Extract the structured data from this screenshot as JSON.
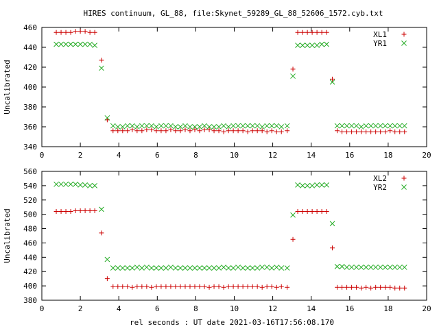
{
  "chart_data": {
    "title": "HIRES continuum, GL_88, file:Skynet_59289_GL_88_52606_1572.cyb.txt",
    "xlabel": "rel seconds : UT date 2021-03-16T17:56:08.170",
    "colors": {
      "series1": "#cc0000",
      "series2": "#22aa22"
    },
    "panels": [
      {
        "type": "scatter",
        "ylabel": "Uncalibrated",
        "xlim": [
          0,
          20
        ],
        "ylim": [
          340,
          460
        ],
        "xticks": [
          0,
          2,
          4,
          6,
          8,
          10,
          12,
          14,
          16,
          18,
          20
        ],
        "yticks": [
          340,
          360,
          380,
          400,
          420,
          440,
          460
        ],
        "legend_position": "top-right",
        "x": [
          0.75,
          1.0,
          1.25,
          1.5,
          1.75,
          2.0,
          2.25,
          2.5,
          2.75,
          3.1,
          3.4,
          3.7,
          3.95,
          4.2,
          4.45,
          4.7,
          4.95,
          5.2,
          5.45,
          5.7,
          5.95,
          6.2,
          6.45,
          6.7,
          6.95,
          7.2,
          7.45,
          7.7,
          7.95,
          8.2,
          8.45,
          8.7,
          8.95,
          9.2,
          9.45,
          9.7,
          9.95,
          10.2,
          10.45,
          10.7,
          10.95,
          11.2,
          11.45,
          11.7,
          11.95,
          12.2,
          12.45,
          12.75,
          13.05,
          13.3,
          13.55,
          13.8,
          14.05,
          14.3,
          14.55,
          14.8,
          15.1,
          15.35,
          15.6,
          15.85,
          16.1,
          16.35,
          16.6,
          16.85,
          17.1,
          17.35,
          17.6,
          17.85,
          18.1,
          18.35,
          18.6,
          18.85
        ],
        "series": [
          {
            "name": "XL1",
            "marker": "plus",
            "values": [
              455,
              455,
              455,
              455,
              456,
              456,
              456,
              455,
              455,
              427,
              367,
              356,
              356,
              356,
              356,
              357,
              356,
              356,
              357,
              357,
              356,
              356,
              356,
              357,
              356,
              356,
              357,
              356,
              357,
              356,
              357,
              357,
              356,
              356,
              355,
              356,
              356,
              356,
              356,
              355,
              356,
              356,
              356,
              355,
              356,
              355,
              355,
              356,
              418,
              455,
              455,
              455,
              455,
              455,
              455,
              455,
              408,
              356,
              355,
              355,
              355,
              355,
              355,
              355,
              355,
              355,
              355,
              355,
              356,
              355,
              355,
              355
            ]
          },
          {
            "name": "YR1",
            "marker": "cross",
            "values": [
              443,
              443,
              443,
              443,
              443,
              443,
              443,
              443,
              442,
              419,
              369,
              361,
              360,
              360,
              361,
              361,
              360,
              361,
              361,
              361,
              360,
              361,
              361,
              361,
              360,
              360,
              361,
              360,
              360,
              360,
              361,
              360,
              360,
              360,
              361,
              360,
              361,
              361,
              361,
              361,
              361,
              361,
              360,
              361,
              361,
              361,
              360,
              361,
              411,
              442,
              442,
              442,
              442,
              442,
              443,
              443,
              405,
              361,
              361,
              361,
              361,
              361,
              360,
              361,
              361,
              361,
              361,
              361,
              361,
              361,
              361,
              361
            ]
          }
        ]
      },
      {
        "type": "scatter",
        "ylabel": "Uncalibrated",
        "xlim": [
          0,
          20
        ],
        "ylim": [
          380,
          560
        ],
        "xticks": [
          0,
          2,
          4,
          6,
          8,
          10,
          12,
          14,
          16,
          18,
          20
        ],
        "yticks": [
          380,
          400,
          420,
          440,
          460,
          480,
          500,
          520,
          540,
          560
        ],
        "legend_position": "top-right",
        "x": [
          0.75,
          1.0,
          1.25,
          1.5,
          1.75,
          2.0,
          2.25,
          2.5,
          2.75,
          3.1,
          3.4,
          3.7,
          3.95,
          4.2,
          4.45,
          4.7,
          4.95,
          5.2,
          5.45,
          5.7,
          5.95,
          6.2,
          6.45,
          6.7,
          6.95,
          7.2,
          7.45,
          7.7,
          7.95,
          8.2,
          8.45,
          8.7,
          8.95,
          9.2,
          9.45,
          9.7,
          9.95,
          10.2,
          10.45,
          10.7,
          10.95,
          11.2,
          11.45,
          11.7,
          11.95,
          12.2,
          12.45,
          12.75,
          13.05,
          13.3,
          13.55,
          13.8,
          14.05,
          14.3,
          14.55,
          14.8,
          15.1,
          15.35,
          15.6,
          15.85,
          16.1,
          16.35,
          16.6,
          16.85,
          17.1,
          17.35,
          17.6,
          17.85,
          18.1,
          18.35,
          18.6,
          18.85
        ],
        "series": [
          {
            "name": "XL2",
            "marker": "plus",
            "values": [
              504,
              504,
              504,
              504,
              505,
              505,
              505,
              505,
              505,
              474,
              410,
              399,
              399,
              399,
              399,
              398,
              399,
              399,
              399,
              398,
              399,
              399,
              399,
              399,
              399,
              399,
              399,
              399,
              399,
              399,
              399,
              398,
              399,
              399,
              398,
              399,
              399,
              399,
              399,
              399,
              399,
              399,
              398,
              399,
              399,
              398,
              399,
              398,
              465,
              504,
              504,
              504,
              504,
              504,
              504,
              504,
              453,
              398,
              398,
              398,
              398,
              398,
              397,
              398,
              397,
              398,
              398,
              398,
              398,
              397,
              397,
              397
            ]
          },
          {
            "name": "YR2",
            "marker": "cross",
            "values": [
              542,
              542,
              542,
              542,
              542,
              541,
              541,
              540,
              540,
              507,
              437,
              425,
              425,
              425,
              425,
              425,
              426,
              425,
              426,
              425,
              425,
              425,
              425,
              426,
              425,
              425,
              425,
              425,
              425,
              425,
              425,
              425,
              425,
              425,
              426,
              425,
              425,
              426,
              425,
              425,
              425,
              425,
              426,
              426,
              425,
              426,
              425,
              425,
              499,
              541,
              540,
              540,
              540,
              541,
              541,
              541,
              487,
              427,
              427,
              426,
              426,
              426,
              426,
              426,
              426,
              426,
              426,
              426,
              426,
              426,
              426,
              426
            ]
          }
        ]
      }
    ]
  }
}
